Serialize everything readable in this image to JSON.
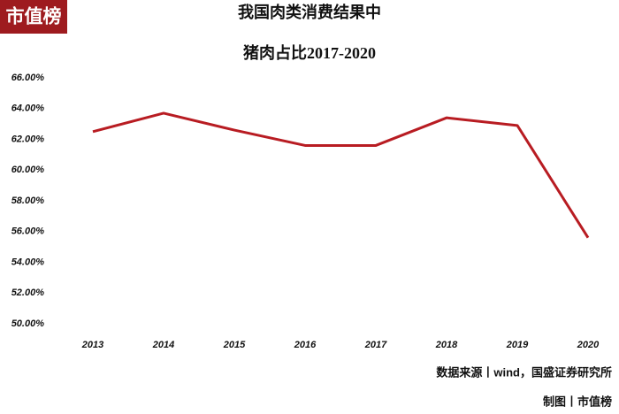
{
  "logo": "市值榜",
  "chart_data": {
    "type": "line",
    "title": "我国肉类消费结果中",
    "subtitle": "猪肉占比2017-2020",
    "categories": [
      "2013",
      "2014",
      "2015",
      "2016",
      "2017",
      "2018",
      "2019",
      "2020"
    ],
    "values": [
      62.5,
      63.7,
      62.6,
      61.6,
      61.6,
      63.4,
      62.9,
      55.6
    ],
    "color": "#b81c22",
    "ylim": [
      50,
      66
    ],
    "yticks": [
      {
        "value": 50,
        "label": "50.00%"
      },
      {
        "value": 52,
        "label": "52.00%"
      },
      {
        "value": 54,
        "label": "54.00%"
      },
      {
        "value": 56,
        "label": "56.00%"
      },
      {
        "value": 58,
        "label": "58.00%"
      },
      {
        "value": 60,
        "label": "60.00%"
      },
      {
        "value": 62,
        "label": "62.00%"
      },
      {
        "value": 64,
        "label": "64.00%"
      },
      {
        "value": 66,
        "label": "66.00%"
      }
    ],
    "grid": false,
    "source": "数据来源丨wind，国盛证券研究所",
    "credit": "制图丨市值榜"
  }
}
